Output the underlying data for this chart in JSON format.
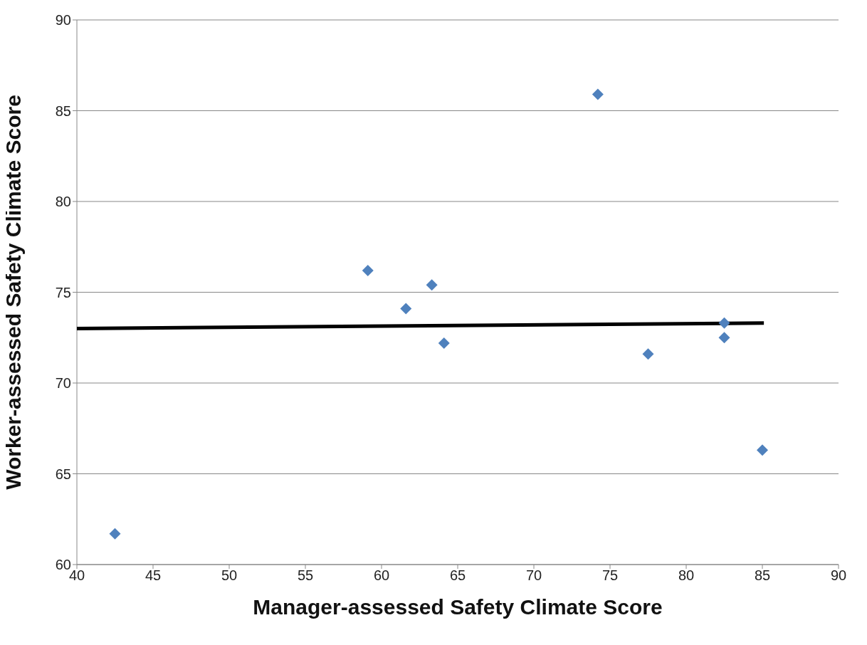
{
  "chart_data": {
    "type": "scatter",
    "xlabel": "Manager-assessed Safety Climate Score",
    "ylabel": "Worker-assessed Safety Climate Score",
    "xlim": [
      40,
      90
    ],
    "xticks": [
      40,
      45,
      50,
      55,
      60,
      65,
      70,
      75,
      80,
      85,
      90
    ],
    "ylim": [
      60,
      90
    ],
    "yticks": [
      60,
      65,
      70,
      75,
      80,
      85,
      90
    ],
    "grid": "y",
    "marker": "diamond",
    "series": [
      {
        "type": "scatter",
        "color": "#4f81bd",
        "x": [
          42.5,
          59.1,
          61.6,
          63.3,
          64.1,
          74.2,
          77.5,
          82.5,
          82.5,
          85.0
        ],
        "values": [
          61.7,
          76.2,
          74.1,
          75.4,
          72.2,
          85.9,
          71.6,
          73.3,
          72.5,
          66.3
        ]
      },
      {
        "type": "line",
        "color": "#000000",
        "marker": "none",
        "line_style": "solid",
        "x": [
          40,
          85.1
        ],
        "values": [
          73.0,
          73.3
        ]
      }
    ]
  }
}
